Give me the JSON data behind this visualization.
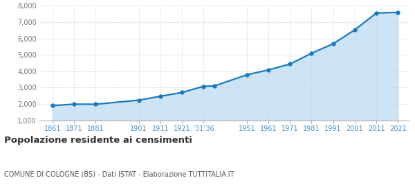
{
  "years": [
    1861,
    1871,
    1881,
    1901,
    1911,
    1921,
    1931,
    1936,
    1951,
    1961,
    1971,
    1981,
    1991,
    2001,
    2011,
    2021
  ],
  "population": [
    1897,
    1986,
    1980,
    2230,
    2470,
    2700,
    3080,
    3100,
    3780,
    4080,
    4440,
    5100,
    5680,
    6530,
    7560,
    7600
  ],
  "line_color": "#1a7abf",
  "fill_color": "#cce4f5",
  "marker_color": "#1a7abf",
  "background_color": "#ffffff",
  "grid_color": "#c8d8e8",
  "ylim": [
    1000,
    8000
  ],
  "yticks": [
    1000,
    2000,
    3000,
    4000,
    5000,
    6000,
    7000,
    8000
  ],
  "xlim_min": 1855,
  "xlim_max": 2026,
  "title": "Popolazione residente ai censimenti",
  "subtitle": "COMUNE DI COLOGNE (BS) - Dati ISTAT - Elaborazione TUTTITALIA.IT",
  "title_color": "#333333",
  "subtitle_color": "#555555",
  "tick_label_color": "#4a90c8",
  "ytick_label_color": "#777777",
  "x_tick_positions": [
    1861,
    1871,
    1881,
    1901,
    1911,
    1921,
    1931,
    1951,
    1961,
    1971,
    1981,
    1991,
    2001,
    2011,
    2021
  ],
  "x_tick_labels": [
    "1861",
    "1871",
    "1881",
    "1901",
    "1911",
    "1921",
    "’31’36",
    "1951",
    "1961",
    "1971",
    "1981",
    "1991",
    "2001",
    "2011",
    "2021"
  ]
}
